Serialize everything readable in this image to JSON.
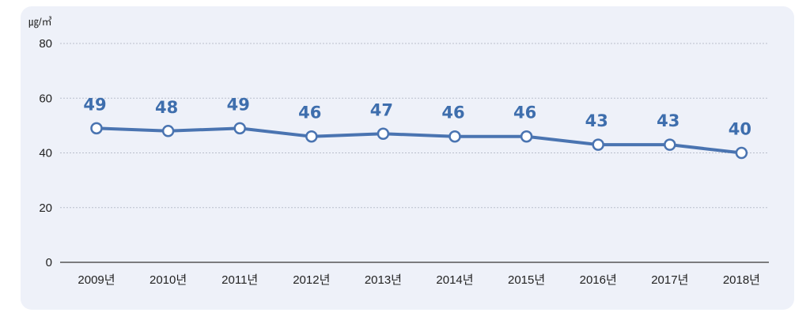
{
  "chart_data": {
    "type": "line",
    "unit_label": "㎍/㎥",
    "categories": [
      "2009년",
      "2010년",
      "2011년",
      "2012년",
      "2013년",
      "2014년",
      "2015년",
      "2016년",
      "2017년",
      "2018년"
    ],
    "series": [
      {
        "values": [
          49,
          48,
          49,
          46,
          47,
          46,
          46,
          43,
          43,
          40
        ]
      }
    ],
    "data_labels": [
      "49",
      "48",
      "49",
      "46",
      "47",
      "46",
      "46",
      "43",
      "43",
      "40"
    ],
    "yticks": [
      "0",
      "20",
      "40",
      "60",
      "80"
    ],
    "ylim": [
      0,
      80
    ],
    "grid": true,
    "colors": {
      "line": "#4a74b1",
      "label": "#3e6ead",
      "marker_fill": "#ffffff",
      "panel": "#eef1f9"
    }
  }
}
